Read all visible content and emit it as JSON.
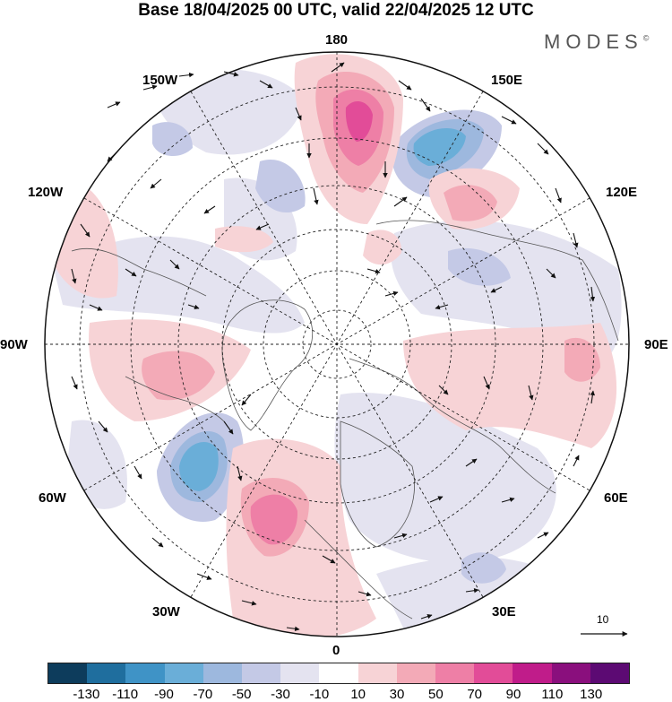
{
  "header": {
    "title": "Base 18/04/2025 00 UTC, valid 22/04/2025 12 UTC",
    "brand": "MODES",
    "brand_mark": "©"
  },
  "map": {
    "projection": "north-polar-stereographic",
    "longitude_labels": {
      "top": "180",
      "bottom": "0",
      "left": "90W",
      "right": "90E",
      "upper_left_1": "150W",
      "upper_left_2": "120W",
      "lower_left_1": "60W",
      "lower_left_2": "30W",
      "upper_right_1": "150E",
      "upper_right_2": "120E",
      "lower_right_1": "60E",
      "lower_right_2": "30E"
    },
    "vector_scale_label": "10"
  },
  "colorbar": {
    "colors": [
      "#0d3c5c",
      "#1f6e9e",
      "#3f93c6",
      "#6aaed8",
      "#9db8de",
      "#c4c9e6",
      "#e4e3f0",
      "#ffffff",
      "#f7d3d6",
      "#f3aab7",
      "#ee7fa6",
      "#e24c98",
      "#c01c8a",
      "#8a0f7d",
      "#5c0a73"
    ],
    "ticks": [
      "-130",
      "-110",
      "-90",
      "-70",
      "-50",
      "-30",
      "-10",
      "10",
      "30",
      "50",
      "70",
      "90",
      "110",
      "130"
    ]
  }
}
